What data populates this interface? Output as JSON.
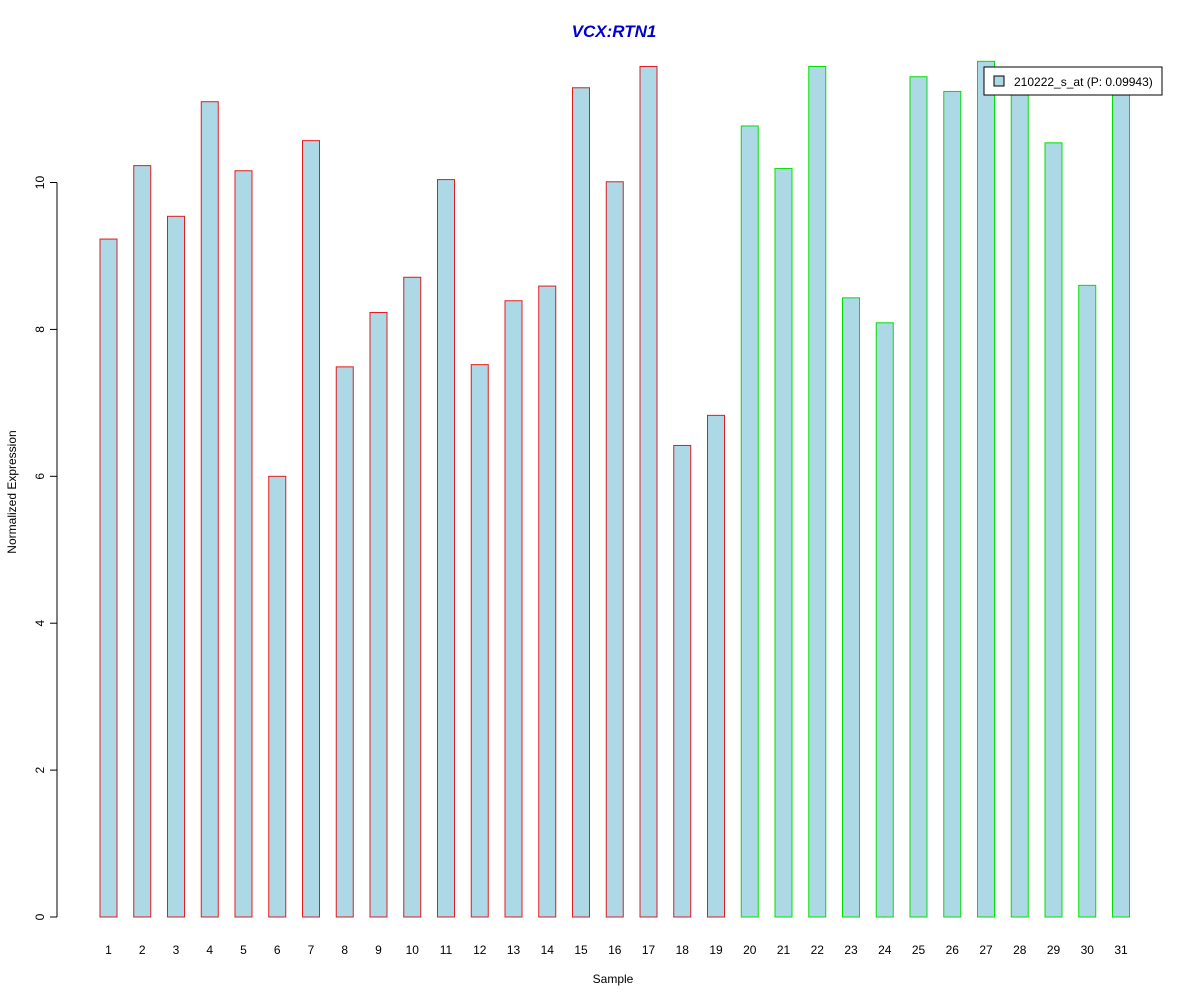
{
  "chart_data": {
    "type": "bar",
    "title": "VCX:RTN1",
    "xlabel": "Sample",
    "ylabel": "Normalized Expression",
    "ylim": [
      0,
      11.6
    ],
    "yticks": [
      0,
      2,
      4,
      6,
      8,
      10
    ],
    "grid": false,
    "legend_position": "top-right",
    "categories": [
      "1",
      "2",
      "3",
      "4",
      "5",
      "6",
      "7",
      "8",
      "9",
      "10",
      "11",
      "12",
      "13",
      "14",
      "15",
      "16",
      "17",
      "18",
      "19",
      "20",
      "21",
      "22",
      "23",
      "24",
      "25",
      "26",
      "27",
      "28",
      "29",
      "30",
      "31"
    ],
    "series": [
      {
        "name": "210222_s_at (P: 0.09943)",
        "values": [
          9.23,
          10.23,
          9.54,
          11.1,
          10.16,
          6.0,
          10.57,
          7.49,
          8.23,
          8.71,
          10.04,
          7.52,
          8.39,
          8.59,
          11.29,
          10.01,
          11.58,
          6.42,
          6.83,
          10.77,
          10.19,
          11.58,
          8.43,
          8.09,
          11.44,
          11.24,
          11.65,
          11.2,
          10.54,
          8.6,
          11.3
        ],
        "group_colors": [
          "#e41a1c",
          "#e41a1c",
          "#e41a1c",
          "#e41a1c",
          "#e41a1c",
          "#e41a1c",
          "#e41a1c",
          "#e41a1c",
          "#e41a1c",
          "#e41a1c",
          "#e41a1c",
          "#e41a1c",
          "#e41a1c",
          "#e41a1c",
          "#e41a1c",
          "#e41a1c",
          "#e41a1c",
          "#e41a1c",
          "#e41a1c",
          "#00e000",
          "#00e000",
          "#00e000",
          "#00e000",
          "#00e000",
          "#00e000",
          "#00e000",
          "#00e000",
          "#00e000",
          "#00e000",
          "#00e000",
          "#00e000"
        ]
      }
    ],
    "colors": {
      "bar_fill": "#add8e6",
      "title": "#0000cc",
      "axis": "#000000"
    }
  }
}
